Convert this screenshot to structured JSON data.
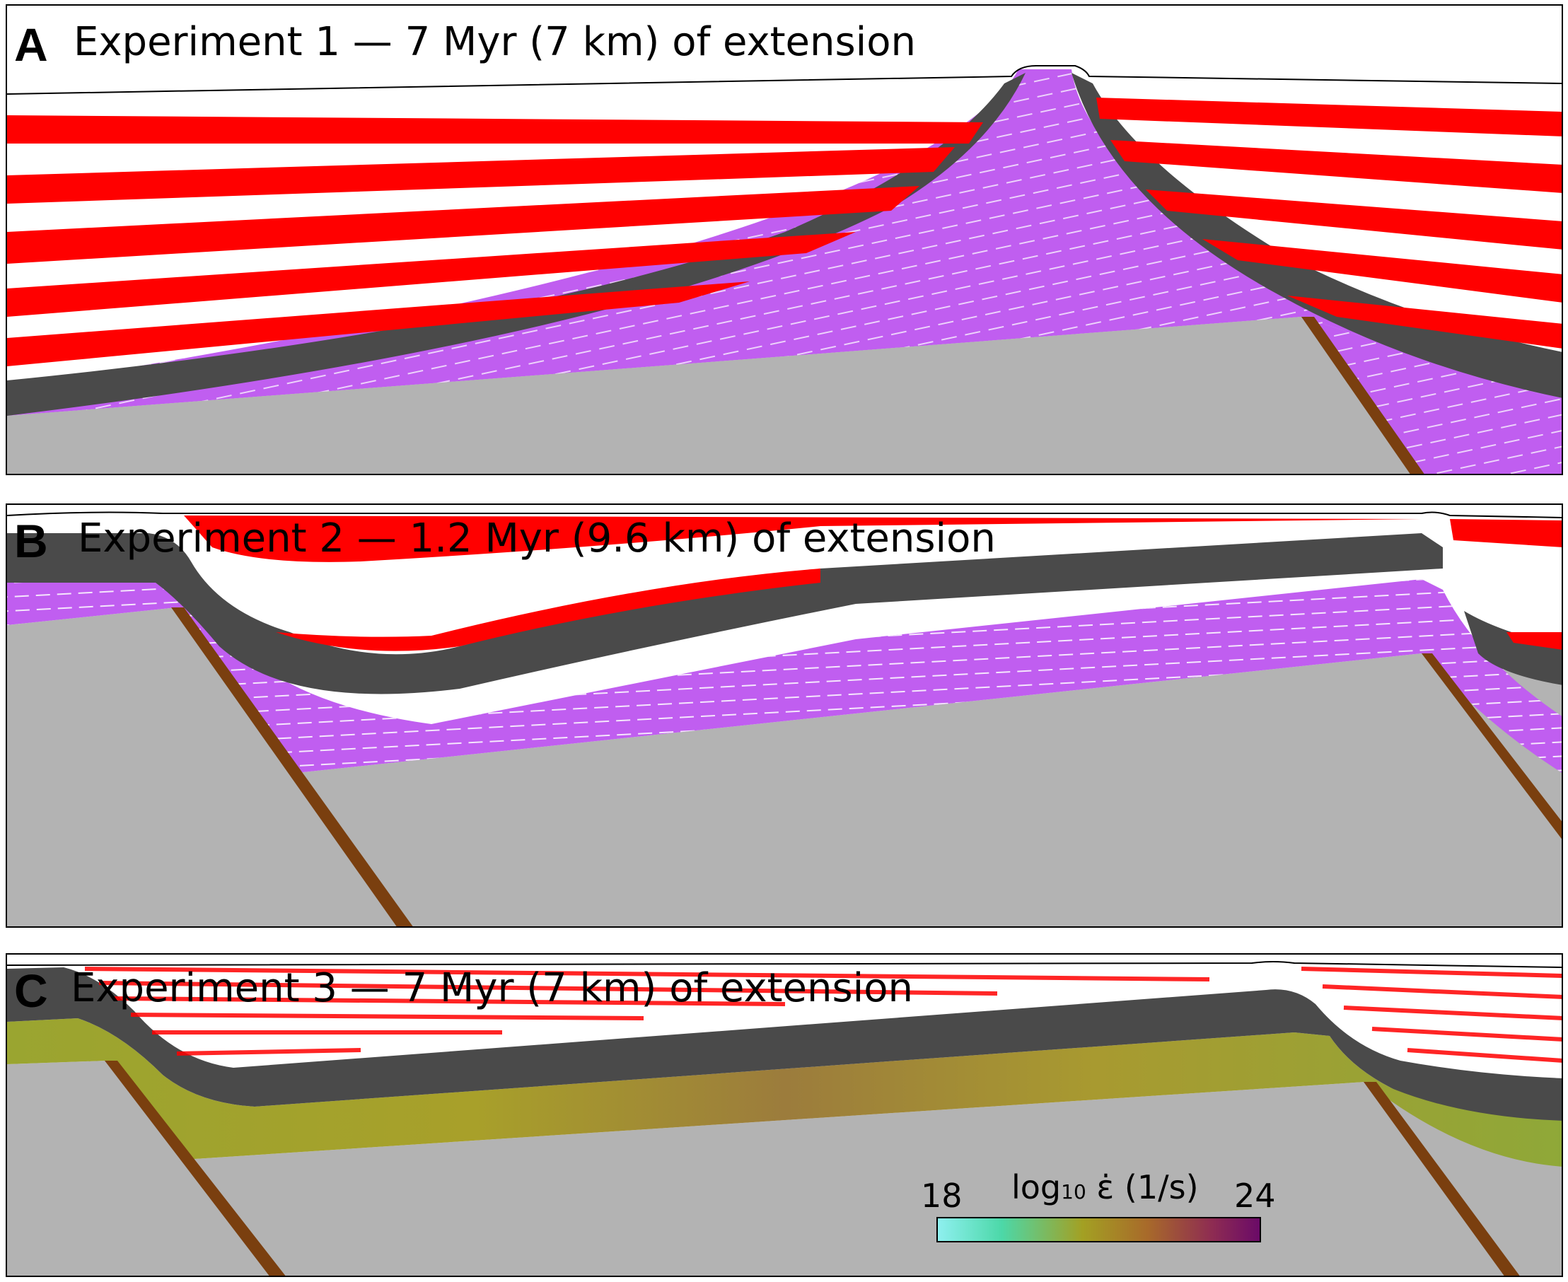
{
  "panels": [
    {
      "letter": "A",
      "title": "Experiment 1 — 7 Myr (7 km) of extension"
    },
    {
      "letter": "B",
      "title": "Experiment 2 — 1.2 Myr (9.6 km) of extension"
    },
    {
      "letter": "C",
      "title": "Experiment 3 — 7 Myr (7 km) of extension"
    }
  ],
  "colorbar": {
    "min": "18",
    "max": "24",
    "label_base": "log",
    "label_sub": "10",
    "label_symbol": "ε̇",
    "label_unit": "(1/s)"
  },
  "colors": {
    "sediment_red": "#ff0000",
    "salt_dark": "#4a4a4a",
    "ductile_purple": "#c05ef0",
    "basement_gray": "#b3b3b3",
    "fault_brown": "#7a3f0f",
    "vector_white": "#ffffff"
  }
}
